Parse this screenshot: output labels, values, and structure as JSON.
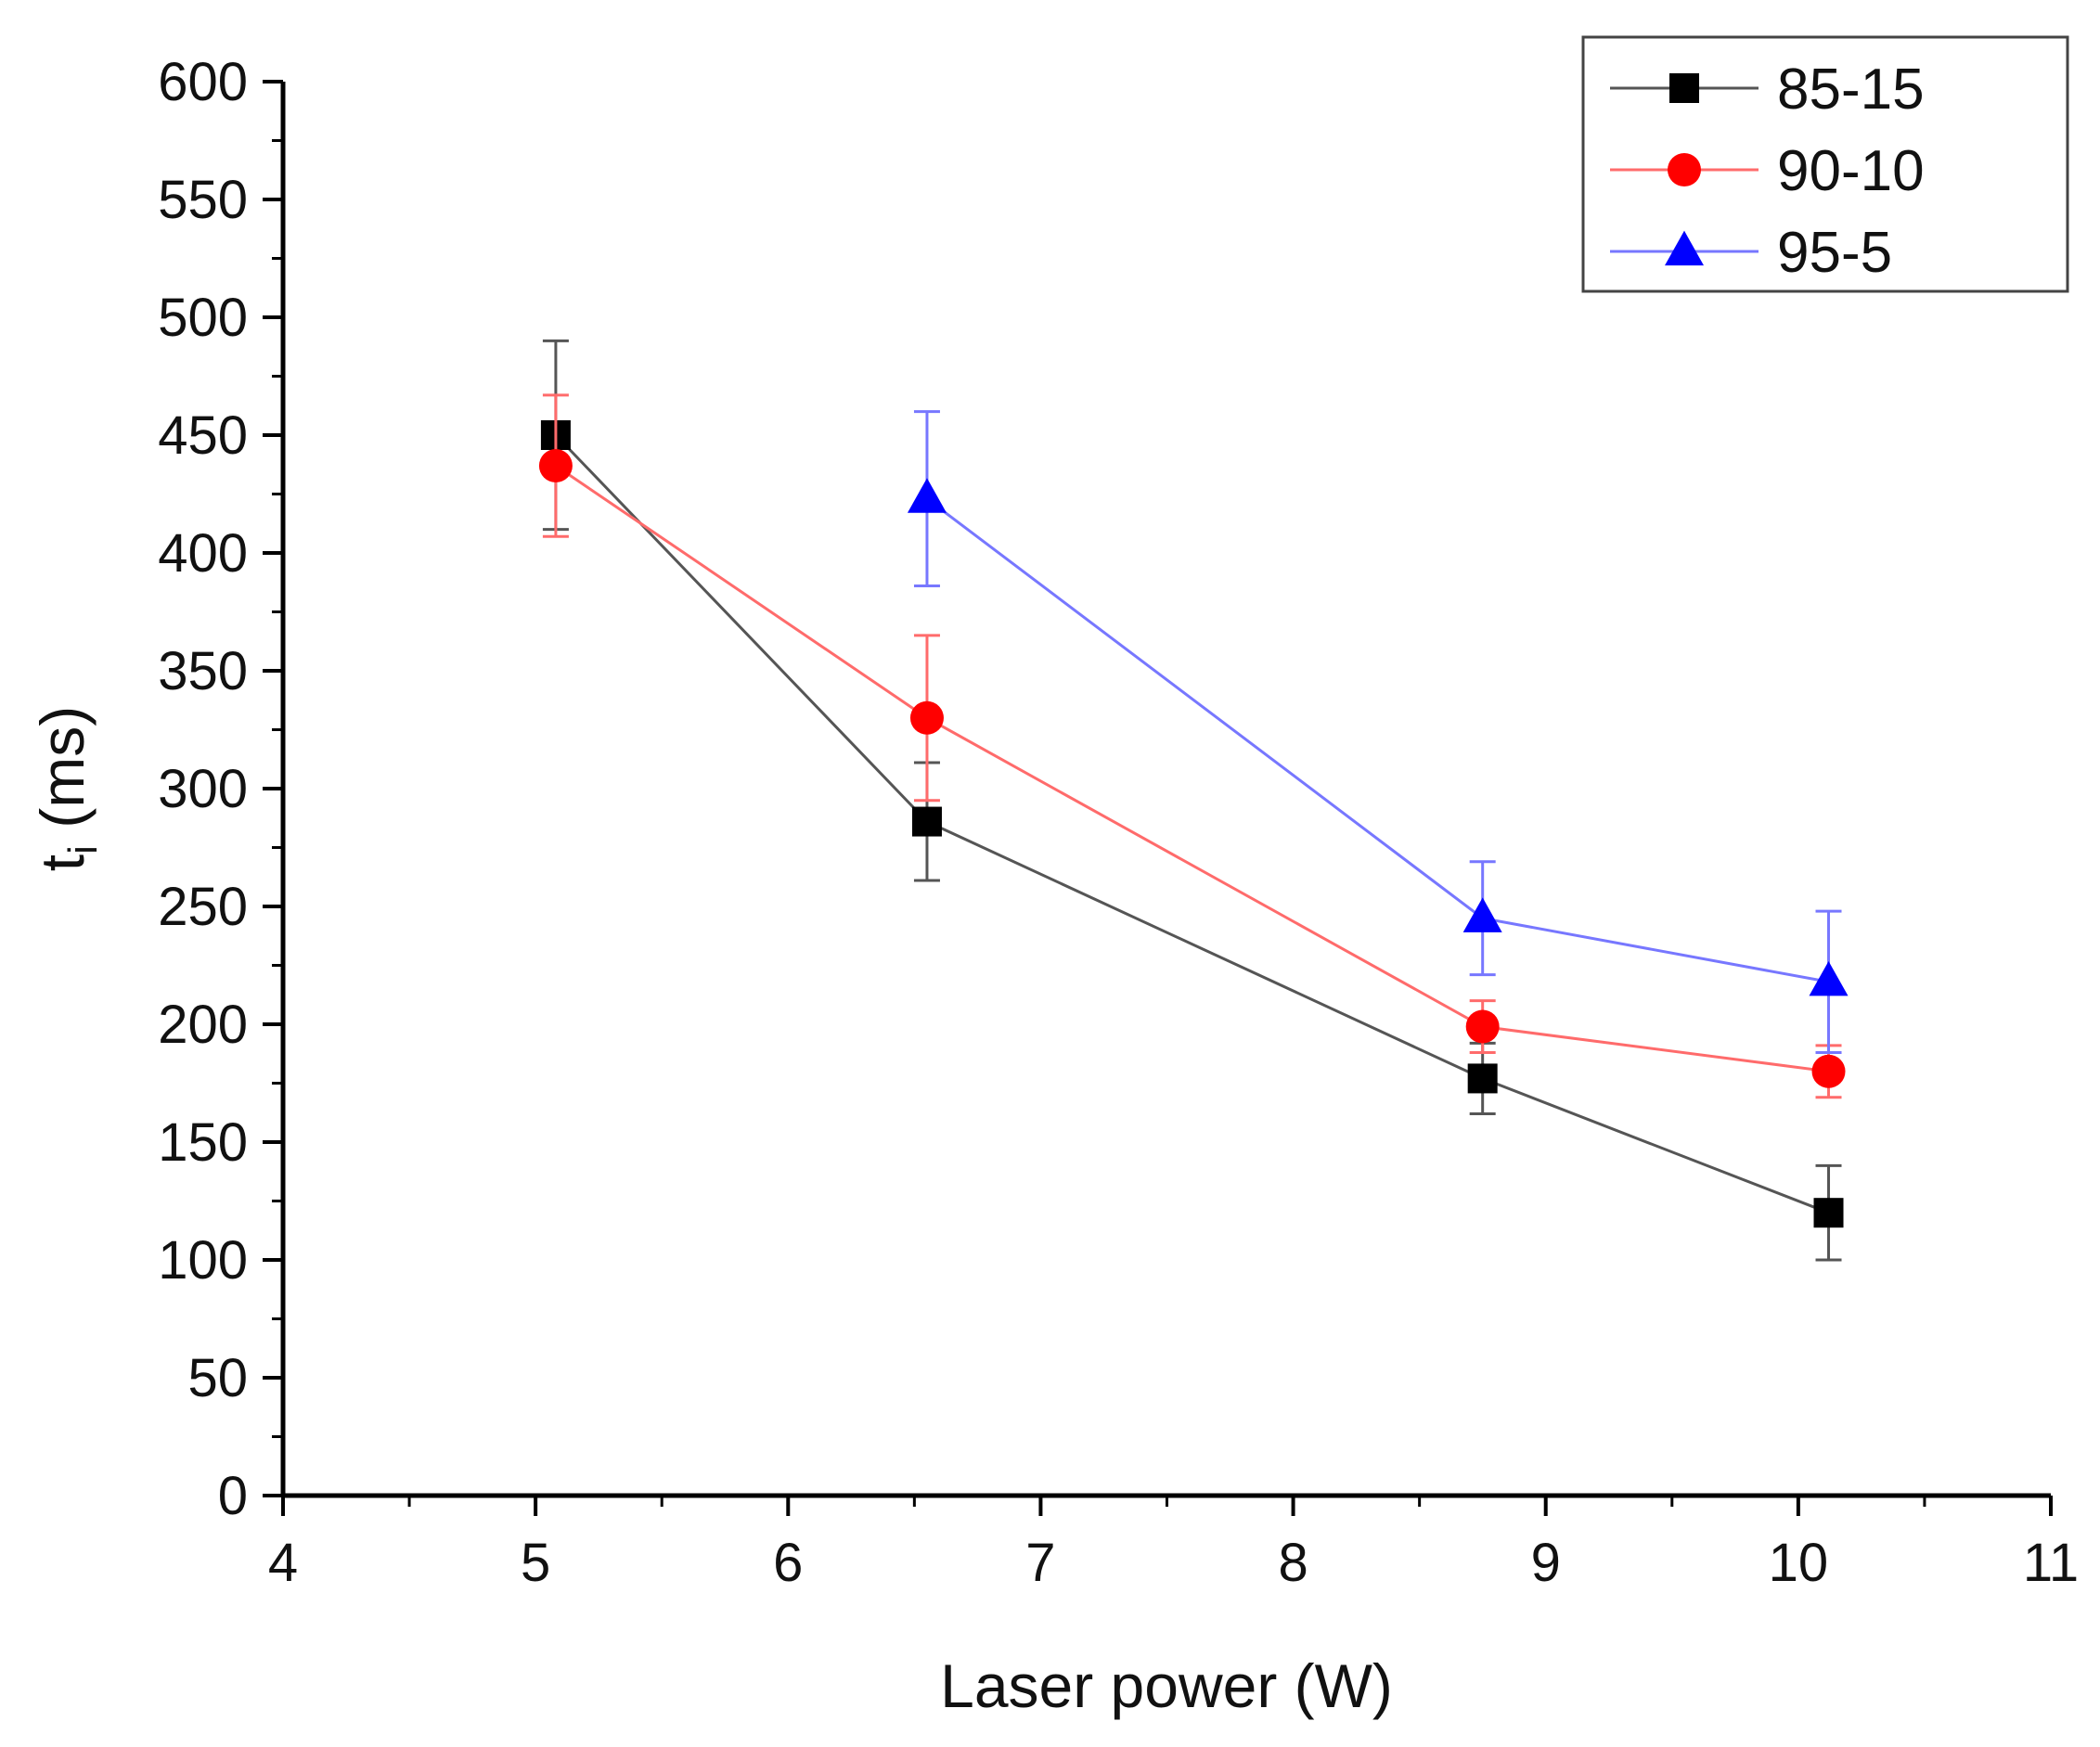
{
  "chart_data": {
    "type": "scatter",
    "xlabel": "Laser power (W)",
    "ylabel": {
      "main": "t",
      "sub": "i",
      "rest": " (ms)"
    },
    "xlim": [
      4,
      11
    ],
    "ylim": [
      0,
      600
    ],
    "xticks": [
      "4",
      "5",
      "6",
      "7",
      "8",
      "9",
      "10",
      "11"
    ],
    "yticks": [
      "0",
      "50",
      "100",
      "150",
      "200",
      "250",
      "300",
      "350",
      "400",
      "450",
      "500",
      "550",
      "600"
    ],
    "grid": false,
    "legend_position": "top-right",
    "lines_connect_points": true,
    "error_bars": true,
    "series": [
      {
        "name": "85-15",
        "marker": "square",
        "color": "#000000",
        "line_color": "#555555",
        "points": [
          {
            "x": 5.08,
            "y": 450,
            "err": 40
          },
          {
            "x": 6.55,
            "y": 286,
            "err": 25
          },
          {
            "x": 8.75,
            "y": 177,
            "err": 15
          },
          {
            "x": 10.12,
            "y": 120,
            "err": 20
          }
        ]
      },
      {
        "name": "90-10",
        "marker": "circle",
        "color": "#ff0000",
        "line_color": "#ff6b6b",
        "points": [
          {
            "x": 5.08,
            "y": 437,
            "err": 30
          },
          {
            "x": 6.55,
            "y": 330,
            "err": 35
          },
          {
            "x": 8.75,
            "y": 199,
            "err": 11
          },
          {
            "x": 10.12,
            "y": 180,
            "err": 11
          }
        ]
      },
      {
        "name": "95-5",
        "marker": "triangle",
        "color": "#0000ff",
        "line_color": "#7777ff",
        "points": [
          {
            "x": 6.55,
            "y": 423,
            "err": 37
          },
          {
            "x": 8.75,
            "y": 245,
            "err": 24
          },
          {
            "x": 10.12,
            "y": 218,
            "err": 30
          }
        ]
      }
    ]
  }
}
